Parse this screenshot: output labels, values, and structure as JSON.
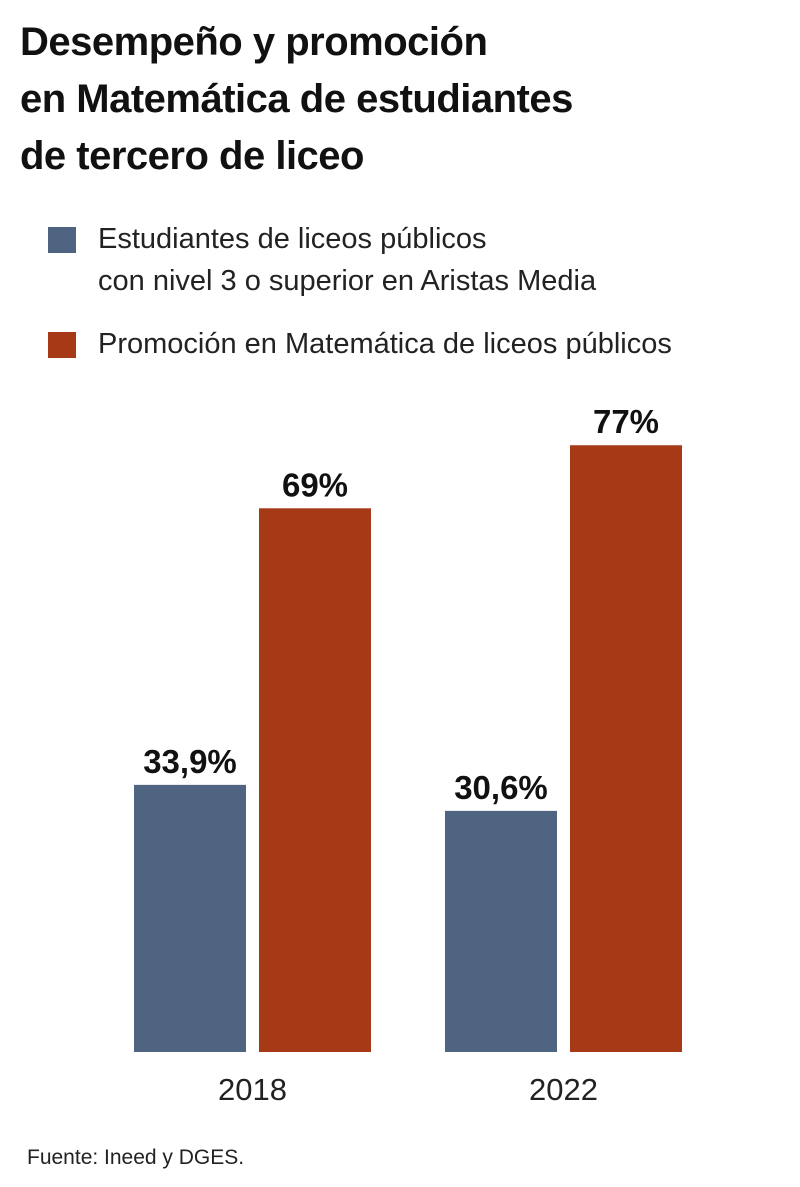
{
  "title_lines": [
    "Desempeño y promoción",
    "en Matemática de estudiantes",
    "de tercero de liceo"
  ],
  "legend": [
    {
      "lines": [
        "Estudiantes de liceos públicos",
        "con nivel 3 o superior en Aristas Media"
      ],
      "color": "#4f6480"
    },
    {
      "lines": [
        "Promoción en Matemática de liceos públicos"
      ],
      "color": "#a63a17"
    }
  ],
  "source": "Fuente: Ineed y DGES.",
  "chart_data": {
    "type": "bar",
    "title": "Desempeño y promoción en Matemática de estudiantes de tercero de liceo",
    "categories": [
      "2018",
      "2022"
    ],
    "series": [
      {
        "name": "Estudiantes de liceos públicos con nivel 3 o superior en Aristas Media",
        "values": [
          33.9,
          30.6
        ],
        "labels": [
          "33,9%",
          "30,6%"
        ],
        "color": "#4f6480"
      },
      {
        "name": "Promoción en Matemática de liceos públicos",
        "values": [
          69,
          77
        ],
        "labels": [
          "69%",
          "77%"
        ],
        "color": "#a63a17"
      }
    ],
    "xlabel": "",
    "ylabel": "",
    "ylim": [
      0,
      100
    ],
    "grid": false,
    "legend_position": "top"
  }
}
